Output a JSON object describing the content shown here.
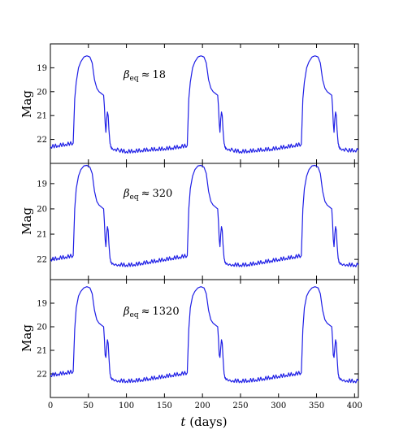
{
  "chart_data": {
    "type": "line",
    "figure": {
      "xlabel_var": "t",
      "xlabel_unit": "(days)",
      "xlim": [
        0,
        405
      ],
      "xticks": [
        0,
        50,
        100,
        150,
        200,
        250,
        300,
        350,
        400
      ],
      "line_color": "#1f1fe6"
    },
    "panels": [
      {
        "ylabel": "Mag",
        "ylim": [
          23.0,
          18.0
        ],
        "yticks": [
          19,
          20,
          21,
          22
        ],
        "annotation_sym": "β",
        "annotation_sub": "eq",
        "annotation_rel": "≈",
        "annotation_val": "18",
        "series": [
          {
            "x": [
              0,
              10,
              20,
              30,
              32,
              34,
              37,
              40,
              44,
              48,
              52,
              55,
              58,
              61,
              64,
              66,
              68,
              70,
              71,
              72,
              73,
              74,
              75,
              76,
              77,
              78,
              79,
              80,
              81,
              85,
              90,
              100,
              110,
              120,
              130,
              140,
              150,
              160,
              170,
              180,
              182,
              184,
              187,
              190,
              194,
              198,
              202,
              205,
              208,
              211,
              214,
              216,
              218,
              220,
              221,
              222,
              223,
              224,
              225,
              226,
              227,
              228,
              229,
              230,
              231,
              235,
              240,
              250,
              260,
              270,
              280,
              290,
              300,
              310,
              320,
              330,
              332,
              334,
              337,
              340,
              344,
              348,
              352,
              355,
              358,
              361,
              364,
              366,
              368,
              370,
              371,
              372,
              373,
              374,
              375,
              376,
              377,
              378,
              379,
              380,
              381,
              385,
              390,
              400,
              405
            ],
            "y": [
              22.3,
              22.25,
              22.2,
              22.15,
              20.3,
              19.6,
              19.0,
              18.75,
              18.55,
              18.5,
              18.55,
              18.8,
              19.5,
              19.85,
              20.0,
              20.05,
              20.1,
              20.15,
              20.6,
              21.3,
              21.7,
              21.15,
              20.85,
              21.0,
              21.6,
              22.0,
              22.2,
              22.3,
              22.35,
              22.4,
              22.45,
              22.5,
              22.48,
              22.45,
              22.42,
              22.4,
              22.38,
              22.35,
              22.3,
              22.25,
              20.3,
              19.6,
              19.0,
              18.75,
              18.55,
              18.5,
              18.55,
              18.8,
              19.5,
              19.85,
              20.0,
              20.05,
              20.1,
              20.15,
              20.6,
              21.3,
              21.7,
              21.15,
              20.85,
              21.0,
              21.6,
              22.0,
              22.2,
              22.3,
              22.35,
              22.4,
              22.45,
              22.5,
              22.48,
              22.45,
              22.42,
              22.4,
              22.35,
              22.3,
              22.25,
              22.2,
              20.3,
              19.6,
              19.0,
              18.75,
              18.55,
              18.5,
              18.55,
              18.8,
              19.5,
              19.85,
              20.0,
              20.05,
              20.1,
              20.15,
              20.6,
              21.3,
              21.7,
              21.15,
              20.85,
              21.0,
              21.6,
              22.0,
              22.2,
              22.3,
              22.35,
              22.4,
              22.45,
              22.45,
              22.45
            ]
          }
        ]
      },
      {
        "ylabel": "Mag",
        "ylim": [
          22.8,
          18.2
        ],
        "yticks": [
          19,
          20,
          21,
          22
        ],
        "annotation_sym": "β",
        "annotation_sub": "eq",
        "annotation_rel": "≈",
        "annotation_val": "320",
        "series": [
          {
            "x": [
              0,
              10,
              20,
              30,
              32,
              34,
              37,
              40,
              44,
              48,
              52,
              55,
              58,
              61,
              64,
              66,
              68,
              70,
              71,
              72,
              73,
              74,
              75,
              76,
              77,
              78,
              79,
              80,
              82,
              86,
              90,
              100,
              110,
              120,
              130,
              140,
              150,
              160,
              170,
              180,
              182,
              184,
              187,
              190,
              194,
              198,
              202,
              205,
              208,
              211,
              214,
              216,
              218,
              220,
              221,
              222,
              223,
              224,
              225,
              226,
              227,
              228,
              229,
              230,
              232,
              236,
              240,
              250,
              260,
              270,
              280,
              290,
              300,
              310,
              320,
              330,
              332,
              334,
              337,
              340,
              344,
              348,
              352,
              355,
              358,
              361,
              364,
              366,
              368,
              370,
              371,
              372,
              373,
              374,
              375,
              376,
              377,
              378,
              379,
              380,
              382,
              386,
              390,
              400,
              405
            ],
            "y": [
              22.0,
              21.95,
              21.9,
              21.85,
              20.0,
              19.2,
              18.7,
              18.45,
              18.3,
              18.28,
              18.35,
              18.6,
              19.3,
              19.7,
              19.85,
              19.9,
              19.95,
              20.0,
              20.5,
              21.2,
              21.5,
              21.0,
              20.7,
              20.85,
              21.4,
              21.8,
              22.0,
              22.1,
              22.15,
              22.18,
              22.2,
              22.22,
              22.2,
              22.15,
              22.1,
              22.05,
              22.0,
              21.95,
              21.9,
              21.85,
              20.0,
              19.2,
              18.7,
              18.45,
              18.3,
              18.28,
              18.35,
              18.6,
              19.3,
              19.7,
              19.85,
              19.9,
              19.95,
              20.0,
              20.5,
              21.2,
              21.5,
              21.0,
              20.7,
              20.85,
              21.4,
              21.8,
              22.0,
              22.1,
              22.15,
              22.18,
              22.2,
              22.22,
              22.2,
              22.15,
              22.1,
              22.05,
              22.0,
              21.95,
              21.9,
              21.85,
              20.0,
              19.2,
              18.7,
              18.45,
              18.3,
              18.28,
              18.35,
              18.6,
              19.3,
              19.7,
              19.85,
              19.9,
              19.95,
              20.0,
              20.5,
              21.2,
              21.5,
              21.0,
              20.7,
              20.85,
              21.4,
              21.8,
              22.0,
              22.1,
              22.15,
              22.18,
              22.2,
              22.22,
              22.22
            ]
          }
        ]
      },
      {
        "ylabel": "Mag",
        "ylim": [
          23.0,
          18.0
        ],
        "yticks": [
          19,
          20,
          21,
          22
        ],
        "annotation_sym": "β",
        "annotation_sub": "eq",
        "annotation_rel": "≈",
        "annotation_val": "1320",
        "series": [
          {
            "x": [
              0,
              10,
              20,
              30,
              32,
              34,
              37,
              40,
              44,
              48,
              52,
              55,
              58,
              61,
              64,
              66,
              68,
              70,
              71,
              72,
              73,
              74,
              75,
              76,
              77,
              78,
              79,
              80,
              82,
              86,
              90,
              100,
              110,
              120,
              130,
              140,
              150,
              160,
              170,
              180,
              182,
              184,
              187,
              190,
              194,
              198,
              202,
              205,
              208,
              211,
              214,
              216,
              218,
              220,
              221,
              222,
              223,
              224,
              225,
              226,
              227,
              228,
              229,
              230,
              232,
              236,
              240,
              250,
              260,
              270,
              280,
              290,
              300,
              310,
              320,
              330,
              332,
              334,
              337,
              340,
              344,
              348,
              352,
              355,
              358,
              361,
              364,
              366,
              368,
              370,
              371,
              372,
              373,
              374,
              375,
              376,
              377,
              378,
              379,
              380,
              382,
              386,
              390,
              400,
              405
            ],
            "y": [
              22.05,
              22.0,
              21.95,
              21.9,
              20.1,
              19.2,
              18.7,
              18.5,
              18.35,
              18.3,
              18.35,
              18.6,
              19.3,
              19.7,
              19.85,
              19.9,
              19.95,
              20.0,
              20.5,
              21.2,
              21.3,
              20.9,
              20.55,
              20.7,
              21.3,
              21.8,
              22.05,
              22.15,
              22.2,
              22.25,
              22.28,
              22.3,
              22.28,
              22.25,
              22.2,
              22.15,
              22.1,
              22.05,
              22.0,
              21.95,
              20.1,
              19.2,
              18.7,
              18.5,
              18.35,
              18.3,
              18.35,
              18.6,
              19.3,
              19.7,
              19.85,
              19.9,
              19.95,
              20.0,
              20.5,
              21.2,
              21.3,
              20.9,
              20.55,
              20.7,
              21.3,
              21.8,
              22.05,
              22.15,
              22.2,
              22.25,
              22.28,
              22.3,
              22.28,
              22.25,
              22.2,
              22.15,
              22.1,
              22.05,
              22.0,
              21.95,
              20.1,
              19.2,
              18.7,
              18.5,
              18.35,
              18.3,
              18.35,
              18.6,
              19.3,
              19.7,
              19.85,
              19.9,
              19.95,
              20.0,
              20.5,
              21.2,
              21.3,
              20.9,
              20.55,
              20.7,
              21.3,
              21.8,
              22.05,
              22.15,
              22.2,
              22.25,
              22.28,
              22.3,
              22.3
            ]
          }
        ]
      }
    ]
  }
}
